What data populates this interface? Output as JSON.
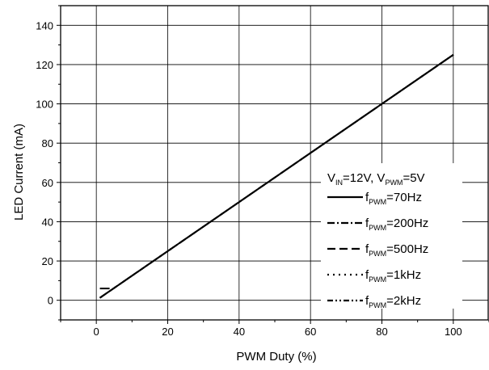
{
  "chart_data": {
    "type": "line",
    "title": "",
    "xlabel": "PWM Duty (%)",
    "ylabel": "LED Current (mA)",
    "xlim": [
      -10,
      110
    ],
    "ylim": [
      -10,
      150
    ],
    "x_ticks": [
      0,
      20,
      40,
      60,
      80,
      100
    ],
    "y_ticks": [
      0,
      20,
      40,
      60,
      80,
      100,
      120,
      140
    ],
    "grid": true,
    "legend_position": "right",
    "legend_header": {
      "v": "V",
      "in": "IN",
      "eq12": "=12V, V",
      "pwm": "PWM",
      "eq5": "=5V"
    },
    "series": [
      {
        "name": "fPWM=70Hz",
        "f": "f",
        "sub": "PWM",
        "label": "=70Hz",
        "dash": "solid",
        "x": [
          1,
          100
        ],
        "y": [
          1.25,
          125
        ]
      },
      {
        "name": "fPWM=200Hz",
        "f": "f",
        "sub": "PWM",
        "label": "=200Hz",
        "dash": "dashdot",
        "x": [
          1,
          100
        ],
        "y": [
          1.25,
          125
        ]
      },
      {
        "name": "fPWM=500Hz",
        "f": "f",
        "sub": "PWM",
        "label": "=500Hz",
        "dash": "dash",
        "x": [
          1,
          100
        ],
        "y": [
          1.25,
          125
        ]
      },
      {
        "name": "fPWM=1kHz",
        "f": "f",
        "sub": "PWM",
        "label": "=1kHz",
        "dash": "dot",
        "x": [
          1,
          100
        ],
        "y": [
          1.25,
          125
        ]
      },
      {
        "name": "fPWM=2kHz",
        "f": "f",
        "sub": "PWM",
        "label": "=2kHz",
        "dash": "dashdotdot",
        "x": [
          1,
          100
        ],
        "y": [
          1.25,
          125
        ]
      }
    ]
  }
}
